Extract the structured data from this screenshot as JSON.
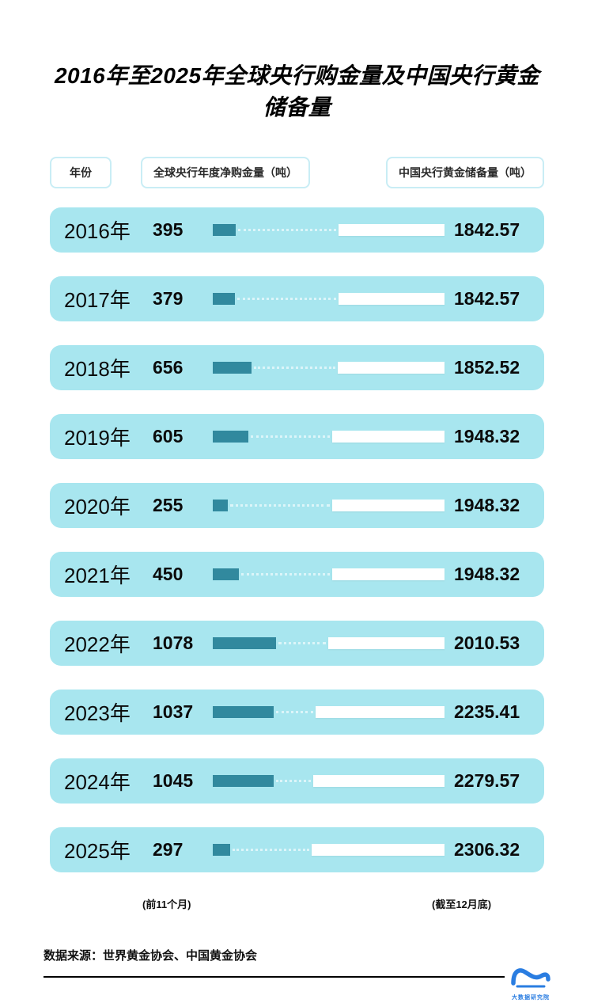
{
  "title": "2016年至2025年全球央行购金量及中国央行黄金储备量",
  "headers": {
    "year": "年份",
    "purchases": "全球央行年度净购金量（吨）",
    "reserves": "中国央行黄金储备量（吨）"
  },
  "chart_data": {
    "type": "bar",
    "categories": [
      "2016年",
      "2017年",
      "2018年",
      "2019年",
      "2020年",
      "2021年",
      "2022年",
      "2023年",
      "2024年",
      "2025年"
    ],
    "series": [
      {
        "name": "全球央行年度净购金量（吨）",
        "values": [
          395,
          379,
          656,
          605,
          255,
          450,
          1078,
          1037,
          1045,
          297
        ]
      },
      {
        "name": "中国央行黄金储备量（吨）",
        "values": [
          1842.57,
          1842.57,
          1852.52,
          1948.32,
          1948.32,
          1948.32,
          2010.53,
          2235.41,
          2279.57,
          2306.32
        ]
      }
    ],
    "title": "2016年至2025年全球央行购金量及中国央行黄金储备量",
    "xlabel": "年份",
    "ylabel": "吨",
    "annotations": {
      "purchases_2025": "(前11个月)",
      "reserves_2025": "(截至12月底)"
    },
    "legend_position": "top",
    "grid": false
  },
  "notes": {
    "purchase": "(前11个月)",
    "reserve": "(截至12月底)"
  },
  "footer": {
    "source": "数据来源：世界黄金协会、中国黄金协会",
    "logo_text": "大数据研究院"
  },
  "colors": {
    "row_bg": "#a8e6ef",
    "bar_teal": "#31899e",
    "bar_white": "#ffffff",
    "connector_dots": "#dcf5f9",
    "logo_blue": "#2a7de1",
    "title_text": "#000000"
  }
}
